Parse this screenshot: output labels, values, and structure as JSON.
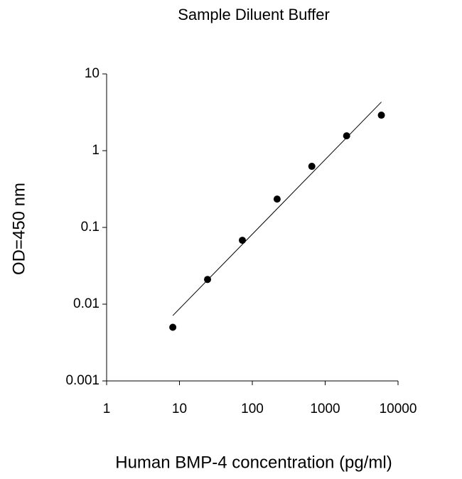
{
  "chart_data": {
    "type": "scatter",
    "title": "Sample Diluent Buffer",
    "xlabel": "Human BMP-4 concentration (pg/ml)",
    "ylabel": "OD=450 nm",
    "xscale": "log",
    "yscale": "log",
    "xlim": [
      1,
      10000
    ],
    "ylim": [
      0.001,
      10
    ],
    "xticks": [
      1,
      10,
      100,
      1000,
      10000
    ],
    "yticks": [
      0.001,
      0.01,
      0.1,
      1,
      10
    ],
    "series": [
      {
        "mode": "markers",
        "color": "#000000",
        "x": [
          8.1,
          24.3,
          73,
          219,
          656,
          1969,
          5906
        ],
        "values": [
          0.005,
          0.021,
          0.068,
          0.234,
          0.625,
          1.56,
          2.9
        ]
      },
      {
        "mode": "line",
        "color": "#000000",
        "x": [
          8.1,
          5906
        ],
        "values": [
          0.0071,
          4.3
        ]
      }
    ]
  }
}
